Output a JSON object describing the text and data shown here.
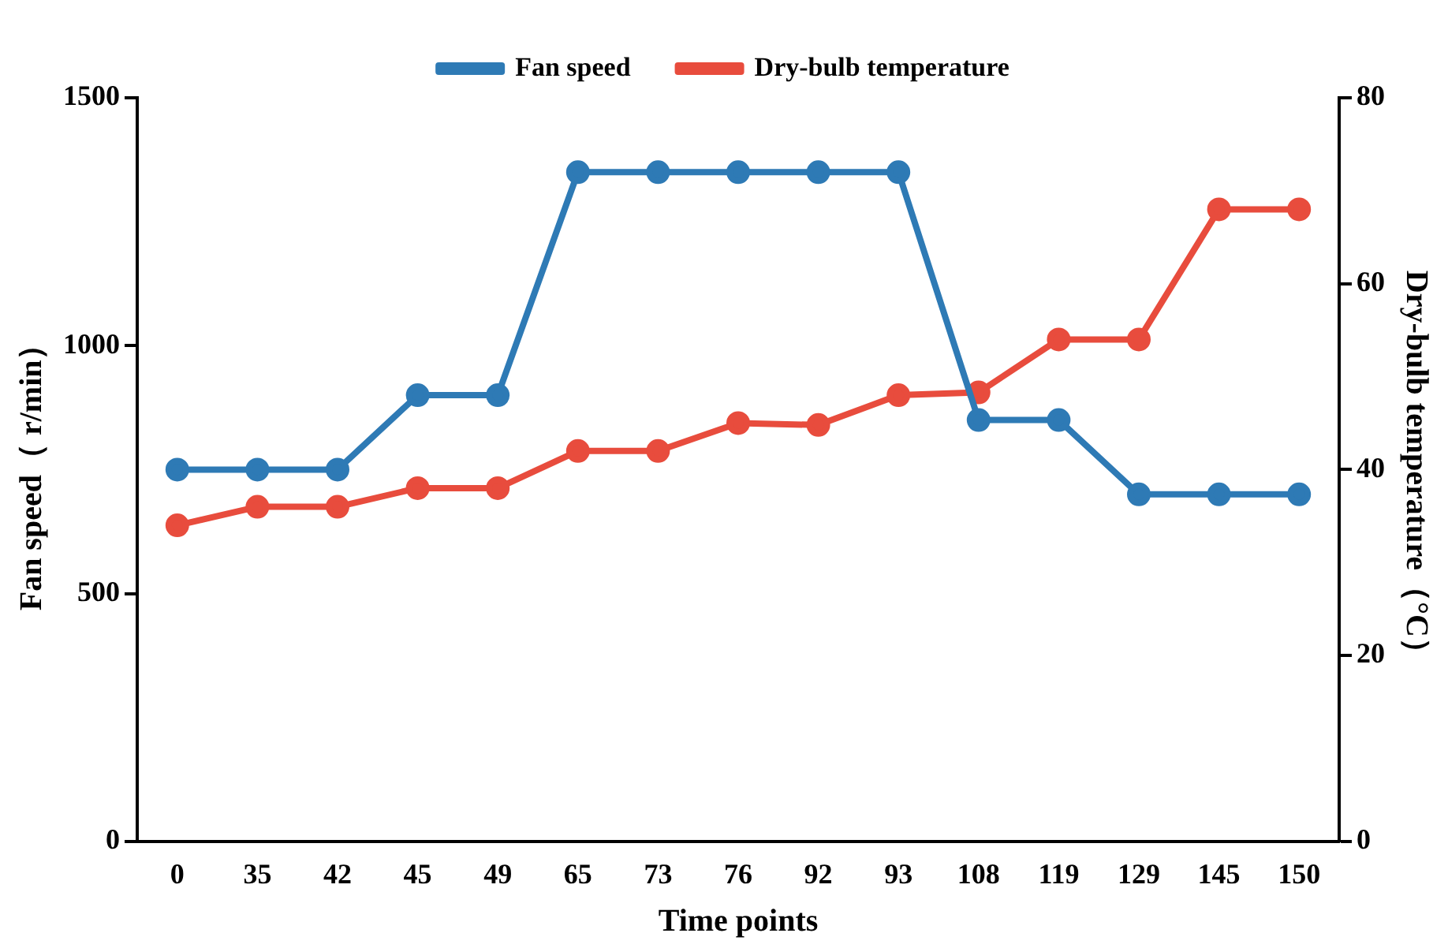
{
  "chart_data": {
    "type": "line",
    "xlabel": "Time points",
    "ylabel": "Fan speed（ r/min）",
    "y2label": "Dry-bulb temperature（°C）",
    "categories": [
      "0",
      "35",
      "42",
      "45",
      "49",
      "65",
      "73",
      "76",
      "92",
      "93",
      "108",
      "119",
      "129",
      "145",
      "150"
    ],
    "series": [
      {
        "name": "Fan speed",
        "color": "#2e7ab5",
        "values": [
          750,
          750,
          750,
          900,
          900,
          1350,
          1350,
          1350,
          1350,
          1350,
          850,
          850,
          700,
          700,
          700
        ]
      },
      {
        "name": "Dry-bulb temperature",
        "color": "#e84c3d",
        "axis": "y2",
        "values": [
          34,
          36,
          36,
          38,
          38,
          42,
          42,
          45,
          44.8,
          48,
          48.3,
          54,
          54,
          68,
          68
        ]
      }
    ],
    "ylim": [
      0,
      1500
    ],
    "yticks": [
      0,
      500,
      1000,
      1500
    ],
    "y2lim": [
      0,
      80
    ],
    "y2ticks": [
      0,
      20,
      40,
      60,
      80
    ],
    "grid": false,
    "legend": "top",
    "marker": "circle",
    "line_style": "solid"
  }
}
